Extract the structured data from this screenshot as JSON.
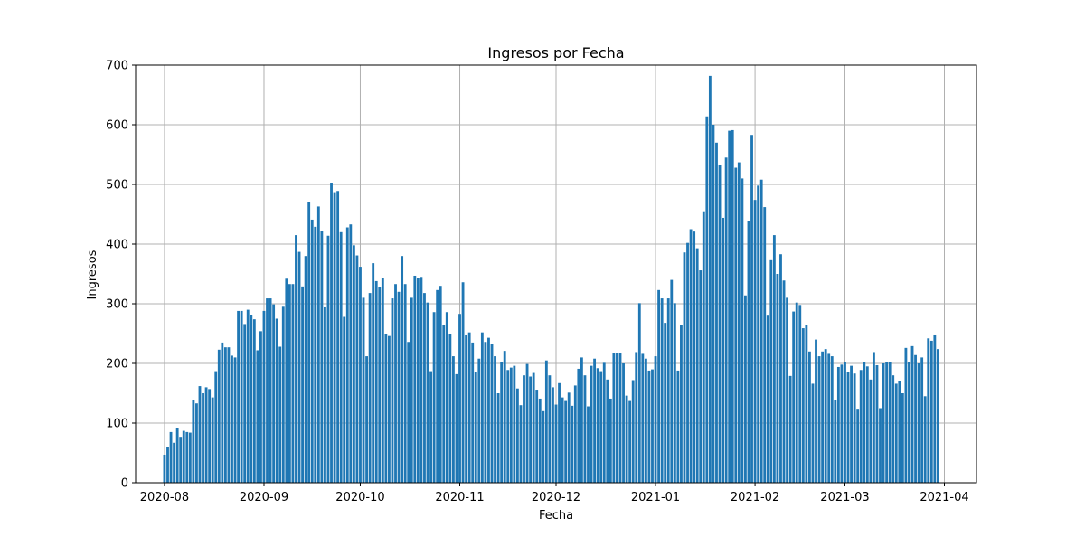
{
  "chart_data": {
    "type": "bar",
    "title": "Ingresos por Fecha",
    "xlabel": "Fecha",
    "ylabel": "Ingresos",
    "x_start": "2020-08-01",
    "x_end": "2021-04-01",
    "xlim": [
      "2020-07-23",
      "2021-04-11"
    ],
    "ylim": [
      0,
      700
    ],
    "grid": true,
    "bar_color": "#1f77b4",
    "x_ticks": [
      "2020-08",
      "2020-09",
      "2020-10",
      "2020-11",
      "2020-12",
      "2021-01",
      "2021-02",
      "2021-03",
      "2021-04"
    ],
    "y_ticks": [
      "0",
      "100",
      "200",
      "300",
      "400",
      "500",
      "600",
      "700"
    ],
    "values": [
      47,
      60,
      85,
      67,
      91,
      77,
      87,
      85,
      84,
      139,
      133,
      162,
      150,
      160,
      157,
      143,
      187,
      223,
      235,
      227,
      227,
      213,
      210,
      288,
      288,
      266,
      290,
      281,
      274,
      222,
      254,
      288,
      309,
      309,
      299,
      275,
      228,
      295,
      342,
      333,
      333,
      415,
      387,
      329,
      380,
      470,
      441,
      429,
      463,
      422,
      294,
      414,
      503,
      487,
      489,
      420,
      278,
      428,
      433,
      398,
      381,
      362,
      310,
      212,
      318,
      368,
      338,
      328,
      343,
      250,
      246,
      309,
      333,
      320,
      380,
      333,
      236,
      310,
      347,
      343,
      345,
      318,
      302,
      187,
      286,
      323,
      330,
      264,
      286,
      250,
      212,
      182,
      283,
      336,
      247,
      252,
      235,
      186,
      208,
      252,
      236,
      243,
      233,
      212,
      150,
      203,
      221,
      189,
      193,
      196,
      158,
      130,
      180,
      199,
      178,
      184,
      156,
      141,
      120,
      205,
      180,
      160,
      131,
      167,
      143,
      137,
      151,
      129,
      163,
      191,
      210,
      180,
      128,
      196,
      208,
      192,
      187,
      201,
      173,
      141,
      218,
      218,
      217,
      200,
      146,
      137,
      172,
      219,
      301,
      216,
      208,
      188,
      190,
      212,
      323,
      309,
      268,
      309,
      340,
      301,
      188,
      265,
      386,
      402,
      425,
      421,
      393,
      356,
      455,
      614,
      682,
      600,
      570,
      533,
      444,
      545,
      590,
      591,
      528,
      537,
      510,
      314,
      439,
      583,
      474,
      498,
      508,
      462,
      280,
      373,
      415,
      350,
      383,
      339,
      310,
      179,
      287,
      302,
      298,
      259,
      265,
      220,
      166,
      240,
      212,
      220,
      224,
      216,
      212,
      138,
      194,
      198,
      202,
      185,
      196,
      183,
      124,
      189,
      203,
      195,
      173,
      219,
      197,
      125,
      200,
      202,
      203,
      180,
      166,
      170,
      150,
      226,
      203,
      229,
      214,
      200,
      210,
      145,
      242,
      238,
      247,
      224
    ]
  }
}
